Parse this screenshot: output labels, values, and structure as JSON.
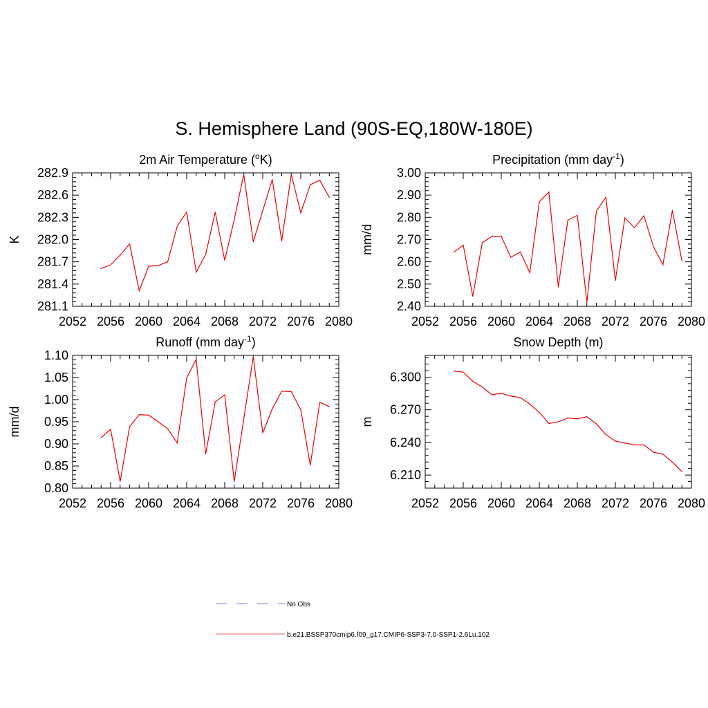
{
  "title": "S. Hemisphere Land (90S-EQ,180W-180E)",
  "line_color": "#ee0000",
  "obs_color": "#9999dd",
  "chart_data": [
    {
      "type": "line",
      "title_main": "2m Air Temperature (",
      "title_sup": "o",
      "title_rest": "K)",
      "ylabel": "K",
      "xlim": [
        2052,
        2080
      ],
      "ylim": [
        281.1,
        282.9
      ],
      "xticks": [
        2052,
        2056,
        2060,
        2064,
        2068,
        2072,
        2076,
        2080
      ],
      "yticks": [
        281.1,
        281.4,
        281.7,
        282.0,
        282.3,
        282.6,
        282.9
      ],
      "ytick_labels": [
        "281.1",
        "281.4",
        "281.7",
        "282.0",
        "282.3",
        "282.6",
        "282.9"
      ],
      "x": [
        2055,
        2056,
        2057,
        2058,
        2059,
        2060,
        2061,
        2062,
        2063,
        2064,
        2065,
        2066,
        2067,
        2068,
        2069,
        2070,
        2071,
        2072,
        2073,
        2074,
        2075,
        2076,
        2077,
        2078,
        2079
      ],
      "y": [
        281.61,
        281.66,
        281.79,
        281.94,
        281.31,
        281.64,
        281.65,
        281.7,
        282.18,
        282.37,
        281.56,
        281.8,
        282.37,
        281.72,
        282.27,
        282.88,
        281.97,
        282.39,
        282.81,
        281.98,
        282.88,
        282.36,
        282.74,
        282.8,
        282.57
      ]
    },
    {
      "type": "line",
      "title_main": "Precipitation (mm day",
      "title_sup": "-1",
      "title_rest": ")",
      "ylabel": "mm/d",
      "xlim": [
        2052,
        2080
      ],
      "ylim": [
        2.4,
        3.0
      ],
      "xticks": [
        2052,
        2056,
        2060,
        2064,
        2068,
        2072,
        2076,
        2080
      ],
      "yticks": [
        2.4,
        2.5,
        2.6,
        2.7,
        2.8,
        2.9,
        3.0
      ],
      "ytick_labels": [
        "2.40",
        "2.50",
        "2.60",
        "2.70",
        "2.80",
        "2.90",
        "3.00"
      ],
      "x": [
        2055,
        2056,
        2057,
        2058,
        2059,
        2060,
        2061,
        2062,
        2063,
        2064,
        2065,
        2066,
        2067,
        2068,
        2069,
        2070,
        2071,
        2072,
        2073,
        2074,
        2075,
        2076,
        2077,
        2078,
        2079
      ],
      "y": [
        2.643,
        2.675,
        2.445,
        2.686,
        2.714,
        2.715,
        2.62,
        2.644,
        2.551,
        2.87,
        2.914,
        2.487,
        2.787,
        2.809,
        2.418,
        2.828,
        2.89,
        2.516,
        2.798,
        2.753,
        2.807,
        2.669,
        2.587,
        2.831,
        2.604
      ]
    },
    {
      "type": "line",
      "title_main": "Runoff (mm day",
      "title_sup": "-1",
      "title_rest": ")",
      "ylabel": "mm/d",
      "xlim": [
        2052,
        2080
      ],
      "ylim": [
        0.8,
        1.1
      ],
      "xticks": [
        2052,
        2056,
        2060,
        2064,
        2068,
        2072,
        2076,
        2080
      ],
      "yticks": [
        0.8,
        0.85,
        0.9,
        0.95,
        1.0,
        1.05,
        1.1
      ],
      "ytick_labels": [
        "0.80",
        "0.85",
        "0.90",
        "0.95",
        "1.00",
        "1.05",
        "1.10"
      ],
      "x": [
        2055,
        2056,
        2057,
        2058,
        2059,
        2060,
        2061,
        2062,
        2063,
        2064,
        2065,
        2066,
        2067,
        2068,
        2069,
        2070,
        2071,
        2072,
        2073,
        2074,
        2075,
        2076,
        2077,
        2078,
        2079
      ],
      "y": [
        0.914,
        0.933,
        0.815,
        0.939,
        0.966,
        0.965,
        0.95,
        0.934,
        0.902,
        1.049,
        1.091,
        0.877,
        0.995,
        1.011,
        0.815,
        0.956,
        1.097,
        0.925,
        0.979,
        1.019,
        1.018,
        0.977,
        0.852,
        0.994,
        0.984
      ]
    },
    {
      "type": "line",
      "title_main": "Snow Depth (m)",
      "title_sup": "",
      "title_rest": "",
      "ylabel": "m",
      "xlim": [
        2052,
        2080
      ],
      "ylim": [
        6.198,
        6.32
      ],
      "xticks": [
        2052,
        2056,
        2060,
        2064,
        2068,
        2072,
        2076,
        2080
      ],
      "yticks": [
        6.21,
        6.24,
        6.27,
        6.3
      ],
      "ytick_labels": [
        "6.210",
        "6.240",
        "6.270",
        "6.300"
      ],
      "x": [
        2055,
        2056,
        2057,
        2058,
        2059,
        2060,
        2061,
        2062,
        2063,
        2064,
        2065,
        2066,
        2067,
        2068,
        2069,
        2070,
        2071,
        2072,
        2073,
        2074,
        2075,
        2076,
        2077,
        2078,
        2079
      ],
      "y": [
        6.3055,
        6.3046,
        6.2962,
        6.291,
        6.2838,
        6.2852,
        6.2826,
        6.2813,
        6.2752,
        6.2676,
        6.2574,
        6.259,
        6.2624,
        6.2618,
        6.2636,
        6.2571,
        6.2471,
        6.2412,
        6.2394,
        6.2377,
        6.2377,
        6.2311,
        6.2292,
        6.2218,
        6.2132
      ]
    }
  ],
  "legend": [
    {
      "label": "No Obs",
      "style": "dashed"
    },
    {
      "label": "b.e21.BSSP370cmip6.f09_g17.CMIP6-SSP3-7.0-SSP1-2.6Lu.102",
      "style": "solid"
    }
  ]
}
